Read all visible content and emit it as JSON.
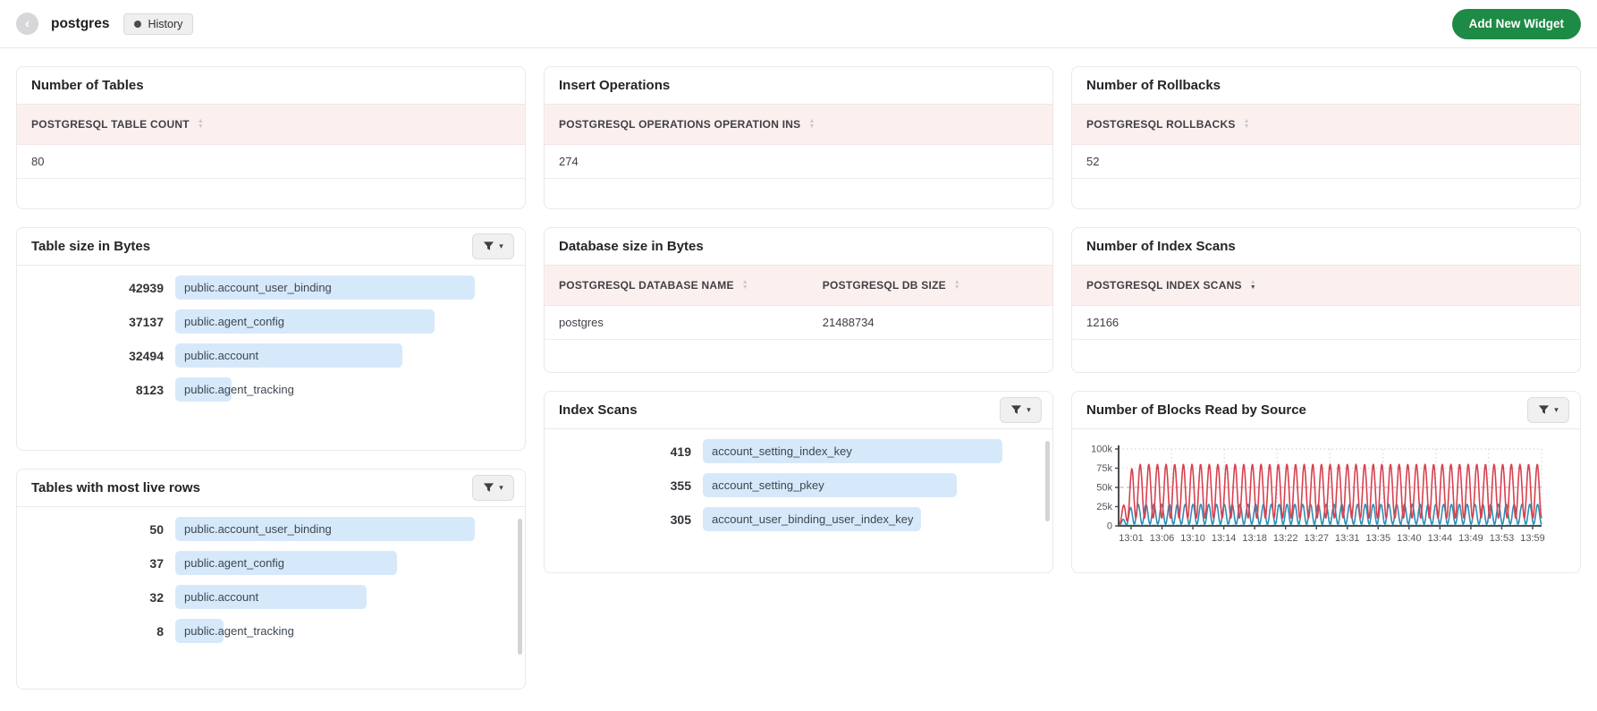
{
  "colors": {
    "accent_green": "#1d8a45",
    "table_header_bg": "#fcf0ee",
    "bar_fill": "#d6e9fa"
  },
  "icons": {
    "back": "‹",
    "sort_up": "▲",
    "sort_down": "▼",
    "dropdown": "▾",
    "filter": "funnel-icon",
    "history_dot": "circle"
  },
  "header": {
    "title": "postgres",
    "history_label": "History",
    "add_widget_label": "Add New Widget"
  },
  "widgets": {
    "number_of_tables": {
      "title": "Number of Tables",
      "columns": [
        {
          "label": "POSTGRESQL TABLE COUNT",
          "sort": "none"
        }
      ],
      "rows": [
        [
          "80"
        ]
      ]
    },
    "insert_operations": {
      "title": "Insert Operations",
      "columns": [
        {
          "label": "POSTGRESQL OPERATIONS OPERATION INS",
          "sort": "none"
        }
      ],
      "rows": [
        [
          "274"
        ]
      ]
    },
    "number_of_rollbacks": {
      "title": "Number of Rollbacks",
      "columns": [
        {
          "label": "POSTGRESQL ROLLBACKS",
          "sort": "none"
        }
      ],
      "rows": [
        [
          "52"
        ]
      ]
    },
    "table_size": {
      "title": "Table size in Bytes",
      "bars": [
        {
          "value": 42939,
          "label": "public.account_user_binding"
        },
        {
          "value": 37137,
          "label": "public.agent_config"
        },
        {
          "value": 32494,
          "label": "public.account"
        },
        {
          "value": 8123,
          "label": "public.agent_tracking"
        }
      ]
    },
    "database_size": {
      "title": "Database size in Bytes",
      "columns": [
        {
          "label": "POSTGRESQL DATABASE NAME",
          "sort": "none"
        },
        {
          "label": "POSTGRESQL DB SIZE",
          "sort": "none"
        }
      ],
      "rows": [
        [
          "postgres",
          "21488734"
        ]
      ]
    },
    "number_of_index_scans": {
      "title": "Number of Index Scans",
      "columns": [
        {
          "label": "POSTGRESQL INDEX SCANS",
          "sort": "desc"
        }
      ],
      "rows": [
        [
          "12166"
        ]
      ]
    },
    "live_rows": {
      "title": "Tables with most live rows",
      "bars": [
        {
          "value": 50,
          "label": "public.account_user_binding"
        },
        {
          "value": 37,
          "label": "public.agent_config"
        },
        {
          "value": 32,
          "label": "public.account"
        },
        {
          "value": 8,
          "label": "public.agent_tracking"
        }
      ]
    },
    "index_scans": {
      "title": "Index Scans",
      "bars": [
        {
          "value": 419,
          "label": "account_setting_index_key"
        },
        {
          "value": 355,
          "label": "account_setting_pkey"
        },
        {
          "value": 305,
          "label": "account_user_binding_user_index_key"
        }
      ]
    },
    "blocks_read": {
      "title": "Number of Blocks Read by Source"
    }
  },
  "chart_data": {
    "type": "line",
    "title": "Number of Blocks Read by Source",
    "x_tick_labels": [
      "13:01",
      "13:06",
      "13:10",
      "13:14",
      "13:18",
      "13:22",
      "13:27",
      "13:31",
      "13:35",
      "13:40",
      "13:44",
      "13:49",
      "13:53",
      "13:59"
    ],
    "y_tick_labels": [
      "100k",
      "75k",
      "50k",
      "25k",
      "0"
    ],
    "ylim": [
      0,
      100000
    ],
    "grid": "dotted",
    "legend_position": "none",
    "series": [
      {
        "name": "series-red",
        "color": "#d8414f",
        "line": "solid",
        "shape": "oscillating",
        "approx_min": 10000,
        "approx_max": 80000,
        "approx_cycles": 49,
        "z": 2
      },
      {
        "name": "series-teal",
        "color": "#2f8eb5",
        "line": "solid",
        "shape": "oscillating",
        "approx_min": 2000,
        "approx_max": 28000,
        "approx_cycles": 54,
        "z": 1
      },
      {
        "name": "series-baseline",
        "color": "#7fcfe0",
        "line": "dashed",
        "shape": "flat",
        "approx_value": 600,
        "z": 3
      }
    ],
    "reference_line": {
      "value": 50000,
      "color": "#eab9be",
      "line": "dashed"
    }
  }
}
